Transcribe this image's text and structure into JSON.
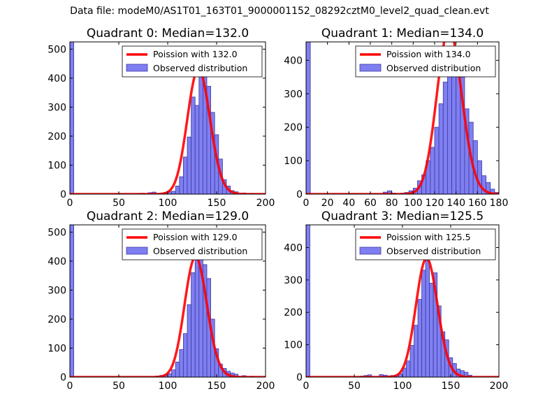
{
  "suptitle": "Data file: modeM0/AS1T01_163T01_9000001152_08292cztM0_level2_quad_clean.evt",
  "colors": {
    "hist_fill": "#7f7ff2",
    "hist_edge": "#3a3aa0",
    "poisson": "#ff0000",
    "axes": "#000000",
    "legend_border": "#000000"
  },
  "chart_data": [
    {
      "type": "bar",
      "title": "Quadrant 0: Median=132.0",
      "median": 132.0,
      "legend": {
        "placement": "top-right",
        "entries": [
          "Poission with 132.0",
          "Observed distribution"
        ]
      },
      "xlim": [
        0,
        200
      ],
      "ylim": [
        0,
        525
      ],
      "xticks": [
        0,
        50,
        100,
        150,
        200
      ],
      "yticks": [
        0,
        100,
        200,
        300,
        400,
        500
      ],
      "bin_width": 4,
      "bins": [
        [
          0,
          525
        ],
        [
          72,
          3
        ],
        [
          80,
          5
        ],
        [
          84,
          7
        ],
        [
          92,
          4
        ],
        [
          96,
          6
        ],
        [
          100,
          8
        ],
        [
          104,
          10
        ],
        [
          108,
          28
        ],
        [
          112,
          60
        ],
        [
          116,
          128
        ],
        [
          120,
          197
        ],
        [
          124,
          335
        ],
        [
          128,
          306
        ],
        [
          132,
          455
        ],
        [
          136,
          475
        ],
        [
          140,
          372
        ],
        [
          144,
          282
        ],
        [
          148,
          205
        ],
        [
          152,
          121
        ],
        [
          156,
          50
        ],
        [
          160,
          28
        ],
        [
          164,
          12
        ],
        [
          168,
          8
        ],
        [
          176,
          4
        ],
        [
          184,
          2
        ]
      ],
      "poisson_mean": 132.0
    },
    {
      "type": "bar",
      "title": "Quadrant 1: Median=134.0",
      "median": 134.0,
      "legend": {
        "placement": "top-right",
        "entries": [
          "Poission with 134.0",
          "Observed distribution"
        ]
      },
      "xlim": [
        0,
        180
      ],
      "ylim": [
        0,
        455
      ],
      "xticks": [
        0,
        20,
        40,
        60,
        80,
        100,
        120,
        140,
        160,
        180
      ],
      "yticks": [
        0,
        100,
        200,
        300,
        400
      ],
      "bin_width": 4,
      "bins": [
        [
          0,
          455
        ],
        [
          72,
          6
        ],
        [
          76,
          10
        ],
        [
          80,
          3
        ],
        [
          88,
          3
        ],
        [
          92,
          5
        ],
        [
          96,
          10
        ],
        [
          100,
          18
        ],
        [
          104,
          40
        ],
        [
          108,
          58
        ],
        [
          112,
          100
        ],
        [
          116,
          140
        ],
        [
          120,
          200
        ],
        [
          124,
          270
        ],
        [
          128,
          335
        ],
        [
          132,
          365
        ],
        [
          136,
          420
        ],
        [
          140,
          398
        ],
        [
          144,
          350
        ],
        [
          148,
          255
        ],
        [
          152,
          215
        ],
        [
          156,
          160
        ],
        [
          160,
          100
        ],
        [
          164,
          55
        ],
        [
          168,
          35
        ],
        [
          172,
          15
        ],
        [
          176,
          5
        ]
      ],
      "poisson_mean": 134.0
    },
    {
      "type": "bar",
      "title": "Quadrant 2: Median=129.0",
      "median": 129.0,
      "legend": {
        "placement": "top-right",
        "entries": [
          "Poission with 129.0",
          "Observed distribution"
        ]
      },
      "xlim": [
        0,
        200
      ],
      "ylim": [
        0,
        525
      ],
      "xticks": [
        0,
        50,
        100,
        150,
        200
      ],
      "yticks": [
        0,
        100,
        200,
        300,
        400,
        500
      ],
      "bin_width": 4,
      "bins": [
        [
          0,
          525
        ],
        [
          88,
          4
        ],
        [
          92,
          6
        ],
        [
          96,
          8
        ],
        [
          100,
          12
        ],
        [
          104,
          25
        ],
        [
          108,
          52
        ],
        [
          112,
          95
        ],
        [
          116,
          150
        ],
        [
          120,
          250
        ],
        [
          124,
          360
        ],
        [
          128,
          430
        ],
        [
          132,
          408
        ],
        [
          136,
          388
        ],
        [
          140,
          340
        ],
        [
          144,
          200
        ],
        [
          148,
          98
        ],
        [
          152,
          45
        ],
        [
          156,
          30
        ],
        [
          160,
          20
        ],
        [
          164,
          14
        ],
        [
          168,
          10
        ],
        [
          176,
          5
        ],
        [
          184,
          3
        ]
      ],
      "poisson_mean": 129.0
    },
    {
      "type": "bar",
      "title": "Quadrant 3: Median=125.5",
      "median": 125.5,
      "legend": {
        "placement": "top-right",
        "entries": [
          "Poission with 125.5",
          "Observed distribution"
        ]
      },
      "xlim": [
        0,
        200
      ],
      "ylim": [
        0,
        470
      ],
      "xticks": [
        0,
        50,
        100,
        150,
        200
      ],
      "yticks": [
        0,
        100,
        200,
        300,
        400
      ],
      "bin_width": 4,
      "bins": [
        [
          0,
          470
        ],
        [
          56,
          3
        ],
        [
          60,
          5
        ],
        [
          64,
          7
        ],
        [
          76,
          8
        ],
        [
          80,
          6
        ],
        [
          84,
          4
        ],
        [
          88,
          5
        ],
        [
          92,
          6
        ],
        [
          96,
          10
        ],
        [
          100,
          28
        ],
        [
          104,
          50
        ],
        [
          108,
          98
        ],
        [
          112,
          160
        ],
        [
          116,
          240
        ],
        [
          120,
          330
        ],
        [
          124,
          360
        ],
        [
          128,
          290
        ],
        [
          132,
          322
        ],
        [
          136,
          220
        ],
        [
          140,
          140
        ],
        [
          144,
          115
        ],
        [
          148,
          60
        ],
        [
          152,
          42
        ],
        [
          156,
          25
        ],
        [
          160,
          20
        ],
        [
          164,
          15
        ],
        [
          168,
          6
        ]
      ],
      "poisson_mean": 125.5
    }
  ]
}
